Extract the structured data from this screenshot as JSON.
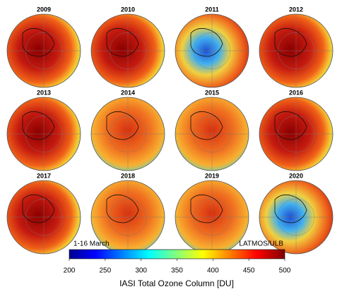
{
  "panels": [
    {
      "title": "2009"
    },
    {
      "title": "2010"
    },
    {
      "title": "2011"
    },
    {
      "title": "2012"
    },
    {
      "title": "2013"
    },
    {
      "title": "2014"
    },
    {
      "title": "2015"
    },
    {
      "title": "2016"
    },
    {
      "title": "2017"
    },
    {
      "title": "2018"
    },
    {
      "title": "2019"
    },
    {
      "title": "2020"
    }
  ],
  "colorbar": {
    "label": "IASI Total Ozone Column [DU]",
    "note_left": "1-16 March",
    "note_right": "LATMOS/ULB",
    "lim": [
      200,
      500
    ],
    "ticks": [
      200,
      250,
      300,
      350,
      400,
      450,
      500
    ]
  }
}
